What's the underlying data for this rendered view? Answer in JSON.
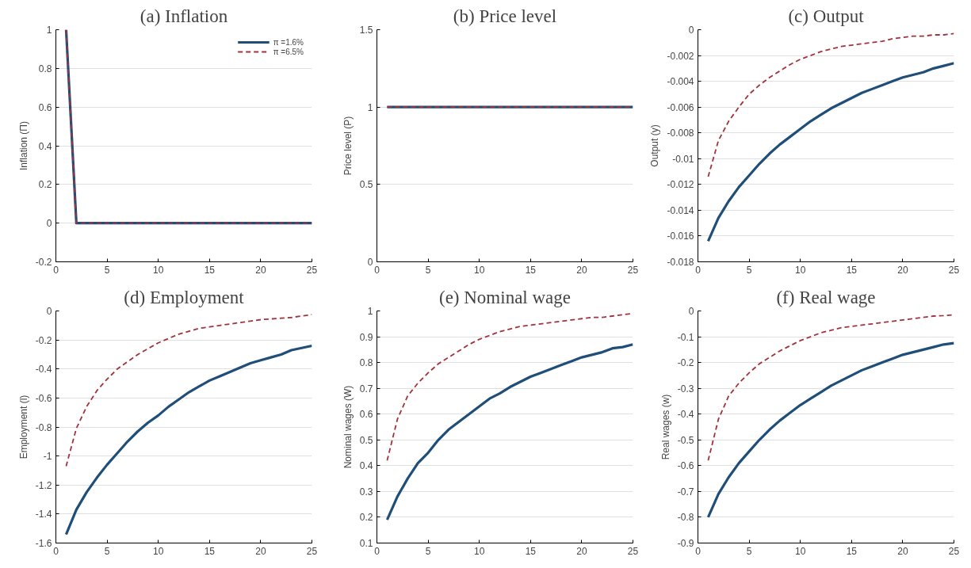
{
  "chart_data": [
    {
      "type": "line",
      "title": "(a) Inflation",
      "ylabel": "Inflation (Π)",
      "x": [
        1,
        2,
        3,
        4,
        5,
        6,
        7,
        8,
        9,
        10,
        11,
        12,
        13,
        14,
        15,
        16,
        17,
        18,
        19,
        20,
        21,
        22,
        23,
        24,
        25
      ],
      "xlim": [
        0,
        25
      ],
      "xticks": [
        0,
        5,
        10,
        15,
        20,
        25
      ],
      "ylim": [
        -0.2,
        1
      ],
      "yticks": [
        -0.2,
        0,
        0.2,
        0.4,
        0.6,
        0.8,
        1
      ],
      "grid": "y",
      "legend": "top right",
      "series": [
        {
          "name": "π =1.6%",
          "color": "#1f4e79",
          "line_style": "solid",
          "values": [
            1,
            0,
            0,
            0,
            0,
            0,
            0,
            0,
            0,
            0,
            0,
            0,
            0,
            0,
            0,
            0,
            0,
            0,
            0,
            0,
            0,
            0,
            0,
            0,
            0
          ]
        },
        {
          "name": "π =6.5%",
          "color": "#a2323c",
          "line_style": "dashed",
          "values": [
            1,
            0,
            0,
            0,
            0,
            0,
            0,
            0,
            0,
            0,
            0,
            0,
            0,
            0,
            0,
            0,
            0,
            0,
            0,
            0,
            0,
            0,
            0,
            0,
            0
          ]
        }
      ]
    },
    {
      "type": "line",
      "title": "(b) Price level",
      "ylabel": "Price level (P)",
      "x": [
        1,
        2,
        3,
        4,
        5,
        6,
        7,
        8,
        9,
        10,
        11,
        12,
        13,
        14,
        15,
        16,
        17,
        18,
        19,
        20,
        21,
        22,
        23,
        24,
        25
      ],
      "xlim": [
        0,
        25
      ],
      "xticks": [
        0,
        5,
        10,
        15,
        20,
        25
      ],
      "ylim": [
        0,
        1.5
      ],
      "yticks": [
        0,
        0.5,
        1,
        1.5
      ],
      "grid": "y",
      "series": [
        {
          "color": "#1f4e79",
          "line_style": "solid",
          "values": [
            1,
            1,
            1,
            1,
            1,
            1,
            1,
            1,
            1,
            1,
            1,
            1,
            1,
            1,
            1,
            1,
            1,
            1,
            1,
            1,
            1,
            1,
            1,
            1,
            1
          ]
        },
        {
          "color": "#a2323c",
          "line_style": "dashed",
          "values": [
            1,
            1,
            1,
            1,
            1,
            1,
            1,
            1,
            1,
            1,
            1,
            1,
            1,
            1,
            1,
            1,
            1,
            1,
            1,
            1,
            1,
            1,
            1,
            1,
            1
          ]
        }
      ]
    },
    {
      "type": "line",
      "title": "(c) Output",
      "ylabel": "Output (y)",
      "x": [
        1,
        2,
        3,
        4,
        5,
        6,
        7,
        8,
        9,
        10,
        11,
        12,
        13,
        14,
        15,
        16,
        17,
        18,
        19,
        20,
        21,
        22,
        23,
        24,
        25
      ],
      "xlim": [
        0,
        25
      ],
      "xticks": [
        0,
        5,
        10,
        15,
        20,
        25
      ],
      "ylim": [
        -0.018,
        0
      ],
      "yticks": [
        -0.018,
        -0.016,
        -0.014,
        -0.012,
        -0.01,
        -0.008,
        -0.006,
        -0.004,
        -0.002,
        0
      ],
      "grid": "y",
      "series": [
        {
          "color": "#1f4e79",
          "line_style": "solid",
          "values": [
            -0.0164,
            -0.0146,
            -0.0133,
            -0.0122,
            -0.0113,
            -0.0104,
            -0.0096,
            -0.0089,
            -0.0083,
            -0.0077,
            -0.0071,
            -0.0066,
            -0.0061,
            -0.0057,
            -0.0053,
            -0.0049,
            -0.0046,
            -0.0043,
            -0.004,
            -0.0037,
            -0.0035,
            -0.0033,
            -0.003,
            -0.0028,
            -0.0026
          ]
        },
        {
          "color": "#a2323c",
          "line_style": "dashed",
          "values": [
            -0.0114,
            -0.0086,
            -0.0071,
            -0.006,
            -0.005,
            -0.0043,
            -0.0037,
            -0.0032,
            -0.0027,
            -0.0023,
            -0.002,
            -0.0017,
            -0.0015,
            -0.0013,
            -0.0012,
            -0.0011,
            -0.001,
            -0.0009,
            -0.0007,
            -0.0006,
            -0.0005,
            -0.0005,
            -0.0004,
            -0.0004,
            -0.0003
          ]
        }
      ]
    },
    {
      "type": "line",
      "title": "(d) Employment",
      "ylabel": "Employment (l)",
      "x": [
        1,
        2,
        3,
        4,
        5,
        6,
        7,
        8,
        9,
        10,
        11,
        12,
        13,
        14,
        15,
        16,
        17,
        18,
        19,
        20,
        21,
        22,
        23,
        24,
        25
      ],
      "xlim": [
        0,
        25
      ],
      "xticks": [
        0,
        5,
        10,
        15,
        20,
        25
      ],
      "ylim": [
        -1.6,
        0
      ],
      "yticks": [
        -1.6,
        -1.4,
        -1.2,
        -1,
        -0.8,
        -0.6,
        -0.4,
        -0.2,
        0
      ],
      "grid": "y",
      "series": [
        {
          "color": "#1f4e79",
          "line_style": "solid",
          "values": [
            -1.54,
            -1.37,
            -1.25,
            -1.15,
            -1.06,
            -0.98,
            -0.9,
            -0.83,
            -0.77,
            -0.72,
            -0.66,
            -0.61,
            -0.56,
            -0.52,
            -0.48,
            -0.45,
            -0.42,
            -0.39,
            -0.36,
            -0.34,
            -0.32,
            -0.3,
            -0.27,
            -0.255,
            -0.24
          ]
        },
        {
          "color": "#a2323c",
          "line_style": "dashed",
          "values": [
            -1.07,
            -0.81,
            -0.66,
            -0.55,
            -0.47,
            -0.4,
            -0.35,
            -0.3,
            -0.26,
            -0.22,
            -0.19,
            -0.16,
            -0.14,
            -0.12,
            -0.11,
            -0.1,
            -0.09,
            -0.08,
            -0.07,
            -0.06,
            -0.055,
            -0.05,
            -0.045,
            -0.035,
            -0.025
          ]
        }
      ]
    },
    {
      "type": "line",
      "title": "(e) Nominal wage",
      "ylabel": "Nominal wages (W)",
      "x": [
        1,
        2,
        3,
        4,
        5,
        6,
        7,
        8,
        9,
        10,
        11,
        12,
        13,
        14,
        15,
        16,
        17,
        18,
        19,
        20,
        21,
        22,
        23,
        24,
        25
      ],
      "xlim": [
        0,
        25
      ],
      "xticks": [
        0,
        5,
        10,
        15,
        20,
        25
      ],
      "ylim": [
        0.1,
        1
      ],
      "yticks": [
        0.1,
        0.2,
        0.3,
        0.4,
        0.5,
        0.6,
        0.7,
        0.8,
        0.9,
        1
      ],
      "grid": "y",
      "series": [
        {
          "color": "#1f4e79",
          "line_style": "solid",
          "values": [
            0.19,
            0.28,
            0.35,
            0.41,
            0.45,
            0.5,
            0.54,
            0.57,
            0.6,
            0.63,
            0.66,
            0.68,
            0.705,
            0.725,
            0.745,
            0.76,
            0.775,
            0.79,
            0.805,
            0.82,
            0.83,
            0.84,
            0.855,
            0.86,
            0.87
          ]
        },
        {
          "color": "#a2323c",
          "line_style": "dashed",
          "values": [
            0.42,
            0.58,
            0.67,
            0.72,
            0.76,
            0.795,
            0.82,
            0.845,
            0.87,
            0.89,
            0.905,
            0.92,
            0.93,
            0.94,
            0.945,
            0.95,
            0.955,
            0.96,
            0.965,
            0.97,
            0.975,
            0.975,
            0.98,
            0.985,
            0.99
          ]
        }
      ]
    },
    {
      "type": "line",
      "title": "(f) Real wage",
      "ylabel": "Real wages (w)",
      "x": [
        1,
        2,
        3,
        4,
        5,
        6,
        7,
        8,
        9,
        10,
        11,
        12,
        13,
        14,
        15,
        16,
        17,
        18,
        19,
        20,
        21,
        22,
        23,
        24,
        25
      ],
      "xlim": [
        0,
        25
      ],
      "xticks": [
        0,
        5,
        10,
        15,
        20,
        25
      ],
      "ylim": [
        -0.9,
        0
      ],
      "yticks": [
        -0.9,
        -0.8,
        -0.7,
        -0.6,
        -0.5,
        -0.4,
        -0.3,
        -0.2,
        -0.1,
        0
      ],
      "grid": "y",
      "series": [
        {
          "color": "#1f4e79",
          "line_style": "solid",
          "values": [
            -0.8,
            -0.71,
            -0.645,
            -0.59,
            -0.545,
            -0.5,
            -0.46,
            -0.425,
            -0.395,
            -0.365,
            -0.34,
            -0.315,
            -0.29,
            -0.27,
            -0.25,
            -0.23,
            -0.215,
            -0.2,
            -0.185,
            -0.17,
            -0.16,
            -0.15,
            -0.14,
            -0.13,
            -0.125
          ]
        },
        {
          "color": "#a2323c",
          "line_style": "dashed",
          "values": [
            -0.58,
            -0.42,
            -0.33,
            -0.28,
            -0.24,
            -0.205,
            -0.18,
            -0.155,
            -0.135,
            -0.115,
            -0.1,
            -0.085,
            -0.075,
            -0.065,
            -0.06,
            -0.055,
            -0.05,
            -0.045,
            -0.04,
            -0.035,
            -0.03,
            -0.025,
            -0.02,
            -0.018,
            -0.015
          ]
        }
      ]
    }
  ]
}
